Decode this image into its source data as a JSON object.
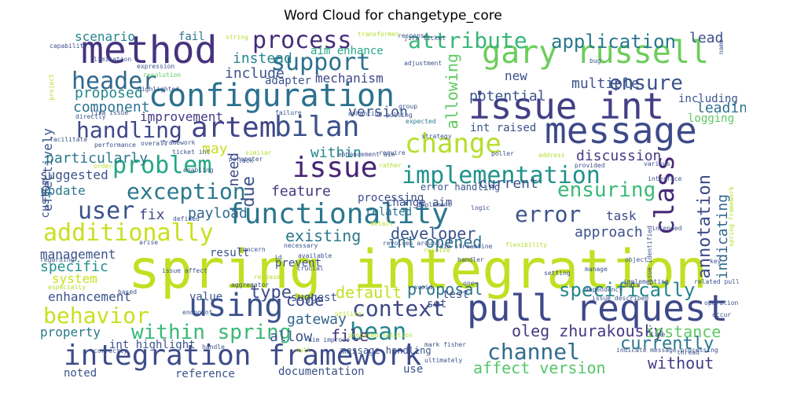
{
  "title": "Word Cloud for changetype_core",
  "words": [
    {
      "text": "spring integration",
      "color": "#c2df23"
    },
    {
      "text": "pull request",
      "color": "#3e4989"
    },
    {
      "text": "issue int",
      "color": "#433e85"
    },
    {
      "text": "message",
      "color": "#3e4a89"
    },
    {
      "text": "gary russell",
      "color": "#6ccd5a"
    },
    {
      "text": "method",
      "color": "#46337f"
    },
    {
      "text": "configuration",
      "color": "#2c718e"
    },
    {
      "text": "functionality",
      "color": "#2a768e"
    },
    {
      "text": "integration framework",
      "color": "#3e4c8a"
    },
    {
      "text": "using",
      "color": "#3b528b"
    },
    {
      "text": "handling",
      "color": "#3f4889"
    },
    {
      "text": "artem",
      "color": "#404588"
    },
    {
      "text": "bilan",
      "color": "#3b518b"
    },
    {
      "text": "issue",
      "color": "#482475"
    },
    {
      "text": "change",
      "color": "#b5de2b"
    },
    {
      "text": "implementation",
      "color": "#21918c"
    },
    {
      "text": "additionally",
      "color": "#c8e020"
    },
    {
      "text": "process",
      "color": "#472c7a"
    },
    {
      "text": "support",
      "color": "#2c728e"
    },
    {
      "text": "attribute",
      "color": "#35b779"
    },
    {
      "text": "header",
      "color": "#31688e"
    },
    {
      "text": "problem",
      "color": "#22a884"
    },
    {
      "text": "exception",
      "color": "#2a788e"
    },
    {
      "text": "user",
      "color": "#3b528b"
    },
    {
      "text": "error",
      "color": "#3b528b"
    },
    {
      "text": "context",
      "color": "#3e4989"
    },
    {
      "text": "bean",
      "color": "#25858e"
    },
    {
      "text": "channel",
      "color": "#2f6c8e"
    },
    {
      "text": "behavior",
      "color": "#c8e020"
    },
    {
      "text": "within spring",
      "color": "#38b977"
    },
    {
      "text": "ensure",
      "color": "#3b528b"
    },
    {
      "text": "ensuring",
      "color": "#3aba76"
    },
    {
      "text": "application",
      "color": "#2a788e"
    },
    {
      "text": "class",
      "color": "#482878"
    },
    {
      "text": "annotation",
      "color": "#3e4a89"
    },
    {
      "text": "specifically",
      "color": "#25858e"
    },
    {
      "text": "currently",
      "color": "#2a788e"
    },
    {
      "text": "oleg zhurakousky",
      "color": "#443a83"
    },
    {
      "text": "instance",
      "color": "#5ec962"
    },
    {
      "text": "affect version",
      "color": "#56c667"
    },
    {
      "text": "without",
      "color": "#433d84"
    },
    {
      "text": "proposal",
      "color": "#2c728e"
    },
    {
      "text": "default",
      "color": "#c2df23"
    },
    {
      "text": "type",
      "color": "#3e4a89"
    },
    {
      "text": "code",
      "color": "#3e4989"
    },
    {
      "text": "allow",
      "color": "#3b528b"
    },
    {
      "text": "file",
      "color": "#472d7b"
    },
    {
      "text": "gateway",
      "color": "#33638d"
    },
    {
      "text": "payload",
      "color": "#31688e"
    },
    {
      "text": "fix",
      "color": "#404688"
    },
    {
      "text": "existing",
      "color": "#2a788e"
    },
    {
      "text": "feature",
      "color": "#443983"
    },
    {
      "text": "developer",
      "color": "#3b528b"
    },
    {
      "text": "int opened",
      "color": "#2d708e"
    },
    {
      "text": "approach",
      "color": "#3b528b"
    },
    {
      "text": "task",
      "color": "#3e4989"
    },
    {
      "text": "indicating",
      "color": "#31688e"
    },
    {
      "text": "discussion",
      "color": "#443a83"
    },
    {
      "text": "current",
      "color": "#3b528b"
    },
    {
      "text": "processing",
      "color": "#3e4c8a"
    },
    {
      "text": "change aim",
      "color": "#3b528b"
    },
    {
      "text": "related",
      "color": "#2c728e"
    },
    {
      "text": "due",
      "color": "#3b528b"
    },
    {
      "text": "need",
      "color": "#3f4889"
    },
    {
      "text": "may",
      "color": "#c8e020"
    },
    {
      "text": "within",
      "color": "#25858e"
    },
    {
      "text": "version",
      "color": "#3b528b"
    },
    {
      "text": "int raised",
      "color": "#3b528b"
    },
    {
      "text": "leading",
      "color": "#2c728e"
    },
    {
      "text": "including",
      "color": "#3b528b"
    },
    {
      "text": "logging",
      "color": "#5ec962"
    },
    {
      "text": "potential",
      "color": "#3b528b"
    },
    {
      "text": "multiple",
      "color": "#3b528b"
    },
    {
      "text": "allowing",
      "color": "#5ec962"
    },
    {
      "text": "new",
      "color": "#3b528b"
    },
    {
      "text": "lead",
      "color": "#3b528b"
    },
    {
      "text": "include",
      "color": "#3b528b"
    },
    {
      "text": "instead",
      "color": "#25858e"
    },
    {
      "text": "aim enhance",
      "color": "#22a884"
    },
    {
      "text": "mechanism",
      "color": "#404688"
    },
    {
      "text": "adapter",
      "color": "#3b528b"
    },
    {
      "text": "proposed",
      "color": "#25858e"
    },
    {
      "text": "component",
      "color": "#2c728e"
    },
    {
      "text": "improvement",
      "color": "#443a83"
    },
    {
      "text": "effectively",
      "color": "#3b528b"
    },
    {
      "text": "scenario",
      "color": "#25858e"
    },
    {
      "text": "fail",
      "color": "#2c728e"
    },
    {
      "text": "particularly",
      "color": "#2a788e"
    },
    {
      "text": "suggested",
      "color": "#3b528b"
    },
    {
      "text": "update",
      "color": "#2a788e"
    },
    {
      "text": "management",
      "color": "#3b528b"
    },
    {
      "text": "specific",
      "color": "#21918c"
    },
    {
      "text": "system",
      "color": "#c8e020"
    },
    {
      "text": "enhancement",
      "color": "#3b528b"
    },
    {
      "text": "property",
      "color": "#2a788e"
    },
    {
      "text": "int highlight",
      "color": "#3b528b"
    },
    {
      "text": "noted",
      "color": "#3b528b"
    },
    {
      "text": "reference",
      "color": "#3b528b"
    },
    {
      "text": "documentation",
      "color": "#3b528b"
    },
    {
      "text": "use",
      "color": "#3b528b"
    },
    {
      "text": "value",
      "color": "#3b528b"
    },
    {
      "text": "result",
      "color": "#3b528b"
    },
    {
      "text": "prevent",
      "color": "#3b528b"
    },
    {
      "text": "suggest",
      "color": "#3b528b"
    },
    {
      "text": "test",
      "color": "#3b528b"
    },
    {
      "text": "set",
      "color": "#3b528b"
    },
    {
      "text": "error handling",
      "color": "#3b528b"
    },
    {
      "text": "message handling",
      "color": "#3b528b"
    },
    {
      "text": "custom",
      "color": "#3b528b"
    },
    {
      "text": "string",
      "color": "#b5de2b"
    },
    {
      "text": "transformer",
      "color": "#b5de2b"
    },
    {
      "text": "jira ticket",
      "color": "#3b528b"
    },
    {
      "text": "response",
      "color": "#3b528b"
    },
    {
      "text": "adjustment",
      "color": "#3b528b"
    },
    {
      "text": "bug",
      "color": "#3b528b"
    },
    {
      "text": "capability",
      "color": "#3b528b"
    },
    {
      "text": "limitation",
      "color": "#3b528b"
    },
    {
      "text": "expression",
      "color": "#3b528b"
    },
    {
      "text": "resolution",
      "color": "#5ec962"
    },
    {
      "text": "highlighted",
      "color": "#3b528b"
    },
    {
      "text": "project",
      "color": "#b5de2b"
    },
    {
      "text": "directly",
      "color": "#3b528b"
    },
    {
      "text": "jira issue",
      "color": "#3b528b"
    },
    {
      "text": "failure",
      "color": "#3b528b"
    },
    {
      "text": "enhancing",
      "color": "#3b528b"
    },
    {
      "text": "polling",
      "color": "#3b528b"
    },
    {
      "text": "expected",
      "color": "#2a788e"
    },
    {
      "text": "group",
      "color": "#3b528b"
    },
    {
      "text": "strategy",
      "color": "#3b528b"
    },
    {
      "text": "facilitate",
      "color": "#3b528b"
    },
    {
      "text": "performance",
      "color": "#3b528b"
    },
    {
      "text": "framework",
      "color": "#3b528b"
    },
    {
      "text": "overall",
      "color": "#3b528b"
    },
    {
      "text": "ticket int",
      "color": "#3b528b"
    },
    {
      "text": "order",
      "color": "#b5de2b"
    },
    {
      "text": "lack",
      "color": "#3b528b"
    },
    {
      "text": "parameter",
      "color": "#3b528b"
    },
    {
      "text": "similar",
      "color": "#b5de2b"
    },
    {
      "text": "enabling",
      "color": "#3b528b"
    },
    {
      "text": "enhancement aim",
      "color": "#3b528b"
    },
    {
      "text": "rather",
      "color": "#b5de2b"
    },
    {
      "text": "require",
      "color": "#3b528b"
    },
    {
      "text": "poller",
      "color": "#3b528b"
    },
    {
      "text": "address",
      "color": "#b5de2b"
    },
    {
      "text": "provided",
      "color": "#3b528b"
    },
    {
      "text": "various",
      "color": "#3b528b"
    },
    {
      "text": "interface",
      "color": "#3b528b"
    },
    {
      "text": "defined",
      "color": "#3b528b"
    },
    {
      "text": "implement",
      "color": "#3b528b"
    },
    {
      "text": "detail",
      "color": "#b5de2b"
    },
    {
      "text": "logic",
      "color": "#3b528b"
    },
    {
      "text": "aim streamline",
      "color": "#3b528b"
    },
    {
      "text": "flexibility",
      "color": "#b5de2b"
    },
    {
      "text": "handler",
      "color": "#3b528b"
    },
    {
      "text": "resolve",
      "color": "#b5de2b"
    },
    {
      "text": "revolves around",
      "color": "#3b528b"
    },
    {
      "text": "available",
      "color": "#3b528b"
    },
    {
      "text": "necessary",
      "color": "#3b528b"
    },
    {
      "text": "concern",
      "color": "#3b528b"
    },
    {
      "text": "arise",
      "color": "#3b528b"
    },
    {
      "text": "regarding",
      "color": "#3b528b"
    },
    {
      "text": "issue affect",
      "color": "#3b528b"
    },
    {
      "text": "crucial",
      "color": "#3b528b"
    },
    {
      "text": "especially",
      "color": "#b5de2b"
    },
    {
      "text": "based",
      "color": "#3b528b"
    },
    {
      "text": "aggregator",
      "color": "#3b528b"
    },
    {
      "text": "release",
      "color": "#b5de2b"
    },
    {
      "text": "one",
      "color": "#3b528b"
    },
    {
      "text": "avoid",
      "color": "#3b528b"
    },
    {
      "text": "setting",
      "color": "#3b528b"
    },
    {
      "text": "manage",
      "color": "#3b528b"
    },
    {
      "text": "dependency",
      "color": "#3b528b"
    },
    {
      "text": "implementing",
      "color": "#3b528b"
    },
    {
      "text": "issue described",
      "color": "#3b528b"
    },
    {
      "text": "endpoint",
      "color": "#3b528b"
    },
    {
      "text": "utilize",
      "color": "#b5de2b"
    },
    {
      "text": "proposed solution",
      "color": "#b5de2b"
    },
    {
      "text": "correctly",
      "color": "#3b528b"
    },
    {
      "text": "handle",
      "color": "#3b528b"
    },
    {
      "text": "null",
      "color": "#b5de2b"
    },
    {
      "text": "aim improve",
      "color": "#3b528b"
    },
    {
      "text": "mark fisher",
      "color": "#3b528b"
    },
    {
      "text": "ultimately",
      "color": "#3b528b"
    },
    {
      "text": "indicate",
      "color": "#3b528b"
    },
    {
      "text": "message processing",
      "color": "#3b528b"
    },
    {
      "text": "thread",
      "color": "#3b528b"
    },
    {
      "text": "time",
      "color": "#3b528b"
    },
    {
      "text": "occur",
      "color": "#3b528b"
    },
    {
      "text": "related pull",
      "color": "#3b528b"
    },
    {
      "text": "operation",
      "color": "#3b528b"
    },
    {
      "text": "key",
      "color": "#3b528b"
    },
    {
      "text": "data",
      "color": "#3b528b"
    },
    {
      "text": "issue identified",
      "color": "#3b528b"
    },
    {
      "text": "spring framework",
      "color": "#b5de2b"
    },
    {
      "text": "object",
      "color": "#3b528b"
    },
    {
      "text": "intended",
      "color": "#3b528b"
    },
    {
      "text": "name",
      "color": "#3b528b"
    },
    {
      "text": "id",
      "color": "#3b528b"
    }
  ]
}
